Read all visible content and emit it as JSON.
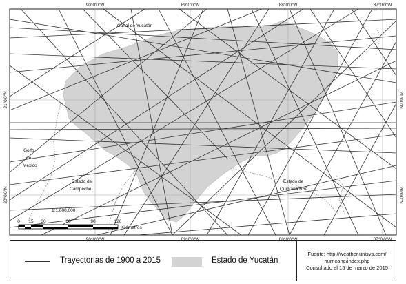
{
  "graticule": {
    "top_labels": [
      "90°0'0\"W",
      "89°0'0\"W",
      "88°0'0\"W",
      "87°0'0\"W"
    ],
    "bottom_labels": [
      "90°0'0\"W",
      "89°0'0\"W",
      "88°0'0\"W",
      "87°0'0\"W"
    ],
    "left_labels": [
      "21°0'0\"N",
      "20°0'0\"N"
    ],
    "right_labels": [
      "21°0'0\"N",
      "20°0'0\"N"
    ]
  },
  "places": {
    "canal": "Canal de Yucatán",
    "golfo_1": "Golfo",
    "golfo_2": "de",
    "golfo_3": "México",
    "campeche_1": "Estado de",
    "campeche_2": "Campeche",
    "qroo_1": "Estado de",
    "qroo_2": "Quintana Roo"
  },
  "scale": {
    "ratio": "1:1,600,000",
    "ticks": [
      "0",
      "15",
      "30",
      "60",
      "90",
      "120"
    ],
    "unit": "Kilómetros"
  },
  "legend": {
    "line_label": "Trayectorias de 1900 a 2015",
    "area_label": "Estado de Yucatán",
    "line_color": "#333333",
    "area_color": "#d3d3d3"
  },
  "source": {
    "line1": "Fuente: http://weather.unisys.com/",
    "line2": "hurricane/index.php",
    "line3": "Consultado el 15 de marzo de 2015"
  }
}
